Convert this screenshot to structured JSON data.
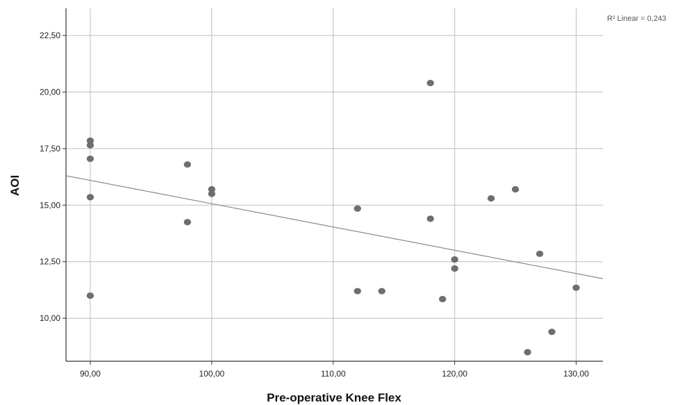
{
  "chart_data": {
    "type": "scatter",
    "xlabel": "Pre-operative Knee Flex",
    "ylabel": "AOI",
    "xlim": [
      88,
      132.2
    ],
    "ylim": [
      8.1,
      23.7
    ],
    "x_ticks": [
      90,
      100,
      110,
      120,
      130
    ],
    "x_tick_labels": [
      "90,00",
      "100,00",
      "110,00",
      "120,00",
      "130,00"
    ],
    "y_ticks": [
      10,
      12.5,
      15,
      17.5,
      20,
      22.5
    ],
    "y_tick_labels": [
      "10,00",
      "12,50",
      "15,00",
      "17,50",
      "20,00",
      "22,50"
    ],
    "grid": true,
    "colors": {
      "points": "#6e6e6e",
      "grid": "#bdbdbd",
      "fit_line": "#8a8a8a",
      "axis": "#333333"
    },
    "points": [
      {
        "x": 90,
        "y": 17.85
      },
      {
        "x": 90,
        "y": 17.65
      },
      {
        "x": 90,
        "y": 17.05
      },
      {
        "x": 90,
        "y": 15.35
      },
      {
        "x": 90,
        "y": 11.0
      },
      {
        "x": 98,
        "y": 16.8
      },
      {
        "x": 98,
        "y": 14.25
      },
      {
        "x": 100,
        "y": 15.7
      },
      {
        "x": 100,
        "y": 15.5
      },
      {
        "x": 112,
        "y": 14.85
      },
      {
        "x": 112,
        "y": 11.2
      },
      {
        "x": 114,
        "y": 11.2
      },
      {
        "x": 118,
        "y": 20.4
      },
      {
        "x": 118,
        "y": 14.4
      },
      {
        "x": 119,
        "y": 10.85
      },
      {
        "x": 120,
        "y": 12.6
      },
      {
        "x": 120,
        "y": 12.2
      },
      {
        "x": 123,
        "y": 15.3
      },
      {
        "x": 125,
        "y": 15.7
      },
      {
        "x": 126,
        "y": 8.5
      },
      {
        "x": 127,
        "y": 12.85
      },
      {
        "x": 128,
        "y": 9.4
      },
      {
        "x": 130,
        "y": 11.35
      }
    ],
    "fit_line": {
      "label": "R² Linear = 0,243",
      "x": [
        88,
        132.2
      ],
      "y": [
        16.3,
        11.75
      ]
    }
  }
}
